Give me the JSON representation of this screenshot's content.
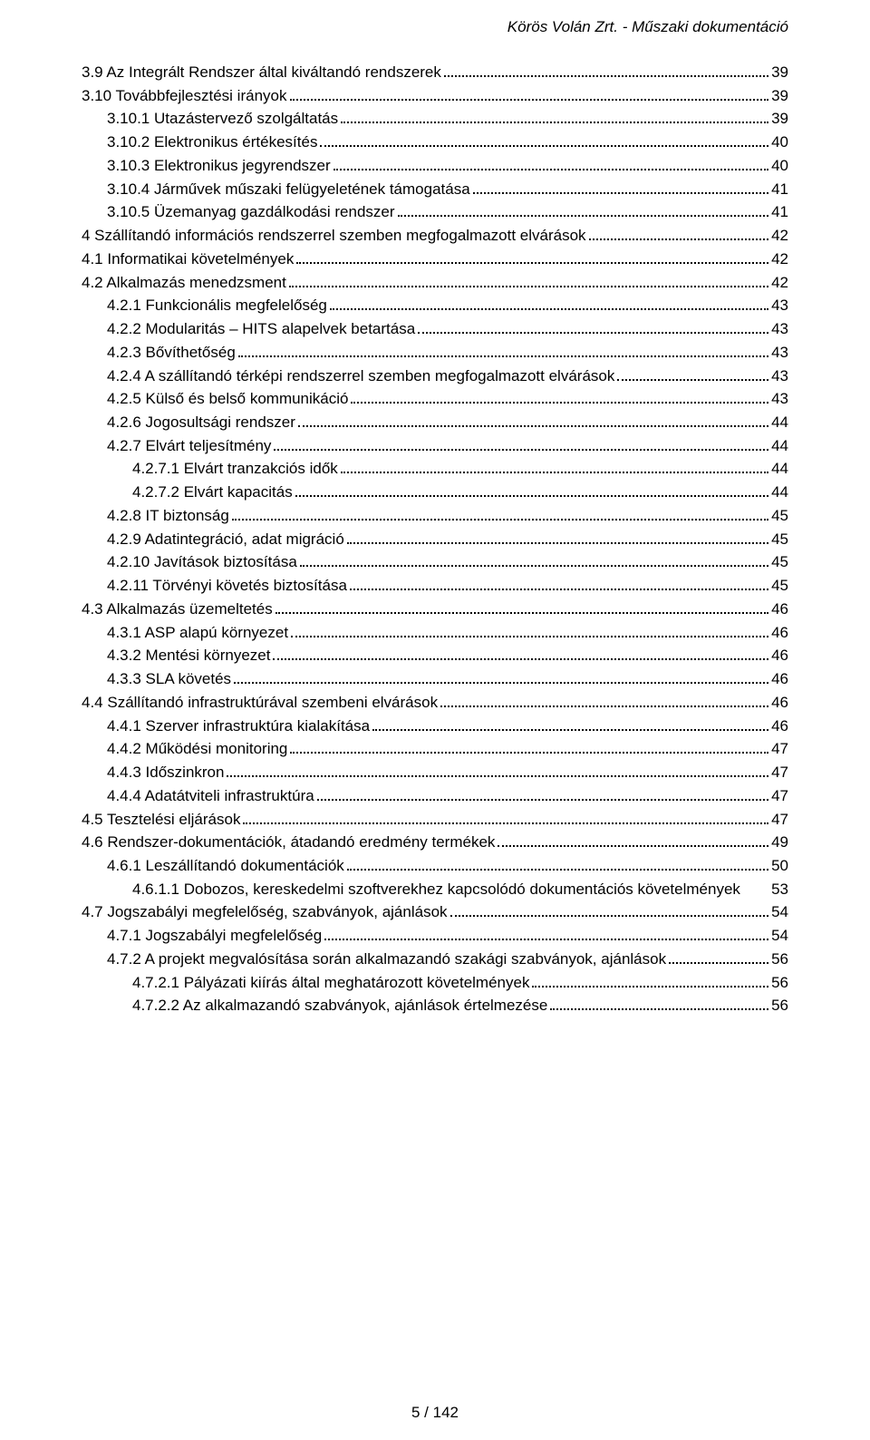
{
  "header": {
    "text": "Körös Volán Zrt. - Műszaki dokumentáció"
  },
  "footer": {
    "text": "5 / 142"
  },
  "toc": [
    {
      "indent": 0,
      "title": "3.9 Az Integrált Rendszer által kiváltandó rendszerek",
      "page": "39",
      "dots": true
    },
    {
      "indent": 0,
      "title": "3.10 Továbbfejlesztési irányok",
      "page": "39",
      "dots": true
    },
    {
      "indent": 1,
      "title": "3.10.1 Utazástervező szolgáltatás",
      "page": "39",
      "dots": true
    },
    {
      "indent": 1,
      "title": "3.10.2 Elektronikus értékesítés",
      "page": "40",
      "dots": true
    },
    {
      "indent": 1,
      "title": "3.10.3 Elektronikus jegyrendszer",
      "page": "40",
      "dots": true
    },
    {
      "indent": 1,
      "title": "3.10.4 Járművek műszaki felügyeletének támogatása",
      "page": "41",
      "dots": true
    },
    {
      "indent": 1,
      "title": "3.10.5 Üzemanyag gazdálkodási rendszer",
      "page": "41",
      "dots": true
    },
    {
      "indent": 0,
      "title": "4 Szállítandó információs rendszerrel szemben megfogalmazott elvárások",
      "page": "42",
      "dots": true
    },
    {
      "indent": 0,
      "title": "4.1 Informatikai követelmények",
      "page": "42",
      "dots": true
    },
    {
      "indent": 0,
      "title": "4.2 Alkalmazás menedzsment",
      "page": "42",
      "dots": true
    },
    {
      "indent": 1,
      "title": "4.2.1 Funkcionális megfelelőség",
      "page": "43",
      "dots": true
    },
    {
      "indent": 1,
      "title": "4.2.2 Modularitás – HITS alapelvek betartása",
      "page": "43",
      "dots": true
    },
    {
      "indent": 1,
      "title": "4.2.3 Bővíthetőség",
      "page": "43",
      "dots": true
    },
    {
      "indent": 1,
      "title": "4.2.4 A szállítandó térképi rendszerrel szemben megfogalmazott elvárások",
      "page": "43",
      "dots": true
    },
    {
      "indent": 1,
      "title": "4.2.5 Külső és belső kommunikáció",
      "page": "43",
      "dots": true
    },
    {
      "indent": 1,
      "title": "4.2.6 Jogosultsági rendszer",
      "page": "44",
      "dots": true
    },
    {
      "indent": 1,
      "title": "4.2.7 Elvárt teljesítmény",
      "page": "44",
      "dots": true
    },
    {
      "indent": 2,
      "title": "4.2.7.1 Elvárt tranzakciós idők",
      "page": "44",
      "dots": true
    },
    {
      "indent": 2,
      "title": "4.2.7.2 Elvárt kapacitás",
      "page": "44",
      "dots": true
    },
    {
      "indent": 1,
      "title": "4.2.8 IT biztonság",
      "page": "45",
      "dots": true
    },
    {
      "indent": 1,
      "title": "4.2.9 Adatintegráció, adat migráció",
      "page": "45",
      "dots": true
    },
    {
      "indent": 1,
      "title": "4.2.10 Javítások biztosítása",
      "page": "45",
      "dots": true
    },
    {
      "indent": 1,
      "title": "4.2.11 Törvényi követés biztosítása",
      "page": "45",
      "dots": true
    },
    {
      "indent": 0,
      "title": "4.3 Alkalmazás üzemeltetés",
      "page": "46",
      "dots": true
    },
    {
      "indent": 1,
      "title": "4.3.1 ASP alapú környezet",
      "page": "46",
      "dots": true
    },
    {
      "indent": 1,
      "title": "4.3.2 Mentési környezet",
      "page": "46",
      "dots": true
    },
    {
      "indent": 1,
      "title": "4.3.3 SLA követés",
      "page": "46",
      "dots": true
    },
    {
      "indent": 0,
      "title": "4.4 Szállítandó infrastruktúrával szembeni elvárások",
      "page": "46",
      "dots": true
    },
    {
      "indent": 1,
      "title": "4.4.1 Szerver infrastruktúra kialakítása",
      "page": "46",
      "dots": true
    },
    {
      "indent": 1,
      "title": "4.4.2 Működési monitoring",
      "page": "47",
      "dots": true
    },
    {
      "indent": 1,
      "title": "4.4.3 Időszinkron",
      "page": "47",
      "dots": true
    },
    {
      "indent": 1,
      "title": "4.4.4 Adatátviteli infrastruktúra",
      "page": "47",
      "dots": true
    },
    {
      "indent": 0,
      "title": "4.5 Tesztelési eljárások",
      "page": "47",
      "dots": true
    },
    {
      "indent": 0,
      "title": "4.6 Rendszer-dokumentációk, átadandó eredmény termékek",
      "page": "49",
      "dots": true
    },
    {
      "indent": 1,
      "title": "4.6.1 Leszállítandó dokumentációk",
      "page": "50",
      "dots": true
    },
    {
      "indent": 2,
      "title": "4.6.1.1 Dobozos, kereskedelmi szoftverekhez kapcsolódó dokumentációs követelmények",
      "page": "53",
      "dots": false
    },
    {
      "indent": 0,
      "title": "4.7 Jogszabályi megfelelőség, szabványok, ajánlások",
      "page": "54",
      "dots": true
    },
    {
      "indent": 1,
      "title": "4.7.1 Jogszabályi megfelelőség",
      "page": "54",
      "dots": true
    },
    {
      "indent": 1,
      "title": "4.7.2 A projekt megvalósítása során alkalmazandó szakági szabványok, ajánlások",
      "page": "56",
      "dots": true
    },
    {
      "indent": 2,
      "title": "4.7.2.1 Pályázati kiírás által meghatározott követelmények",
      "page": "56",
      "dots": true
    },
    {
      "indent": 2,
      "title": "4.7.2.2 Az alkalmazandó szabványok, ajánlások értelmezése",
      "page": "56",
      "dots": true
    }
  ]
}
